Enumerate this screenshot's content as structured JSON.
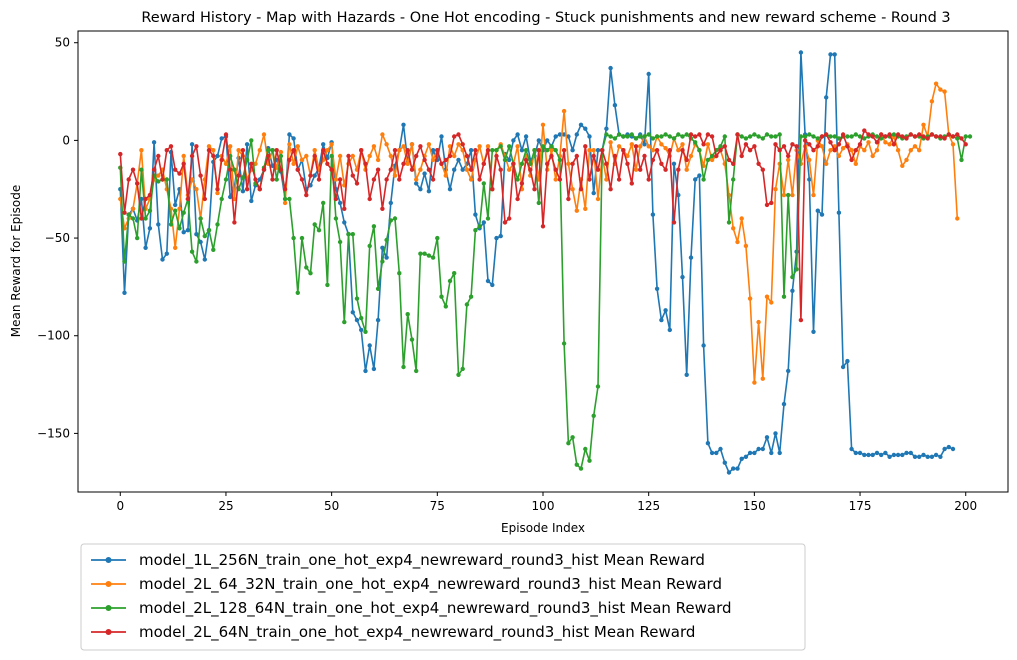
{
  "chart_data": {
    "type": "line",
    "title": "Reward History - Map with Hazards - One Hot encoding - Stuck punishments and new reward scheme - Round 3",
    "xlabel": "Episode Index",
    "ylabel": "Mean Reward for Episode",
    "xlim": [
      -10,
      210
    ],
    "ylim": [
      -180,
      56
    ],
    "x_ticks": [
      0,
      25,
      50,
      75,
      100,
      125,
      150,
      175,
      200
    ],
    "x_tick_labels": [
      "0",
      "25",
      "50",
      "75",
      "100",
      "125",
      "150",
      "175",
      "200"
    ],
    "y_ticks": [
      50,
      0,
      -50,
      -100,
      -150
    ],
    "y_tick_labels": [
      "50",
      "0",
      "−50",
      "−100",
      "−150"
    ],
    "grid": false,
    "legend_position": "below the chart, left",
    "x": "episodes 0..199",
    "series": [
      {
        "name": "model_1L_256N_train_one_hot_exp4_newreward_round3_hist Mean Reward",
        "color": "#1f77b4",
        "values": [
          -25,
          -78,
          -38,
          -35,
          -41,
          -30,
          -55,
          -45,
          -1,
          -43,
          -61,
          -58,
          -6,
          -33,
          -25,
          -47,
          -46,
          -2,
          -48,
          -52,
          -61,
          -46,
          -11,
          -8,
          1,
          2,
          -29,
          -24,
          -9,
          -26,
          -2,
          -31,
          -23,
          -20,
          -15,
          -4,
          -13,
          -10,
          -16,
          -30,
          3,
          1,
          -15,
          -10,
          -25,
          -23,
          -18,
          -14,
          -2,
          -9,
          -1,
          -25,
          -32,
          -42,
          -48,
          -88,
          -92,
          -97,
          -118,
          -105,
          -117,
          -92,
          -55,
          -60,
          -32,
          -13,
          -5,
          8,
          -11,
          -2,
          -22,
          -25,
          -17,
          -26,
          -5,
          -10,
          2,
          -15,
          -25,
          -15,
          -10,
          -15,
          -12,
          -5,
          -38,
          -45,
          -42,
          -72,
          -74,
          -50,
          -49,
          -7,
          -10,
          0,
          3,
          -5,
          2,
          -10,
          -8,
          0,
          -5,
          0,
          -3,
          2,
          3,
          3,
          2,
          -5,
          3,
          8,
          6,
          2,
          -27,
          -5,
          -5,
          6,
          37,
          18,
          3,
          2,
          3,
          2,
          1,
          3,
          -2,
          34,
          -38,
          -76,
          -92,
          -87,
          -97,
          -12,
          -28,
          -70,
          -120,
          -60,
          -20,
          -18,
          -105,
          -155,
          -160,
          -160,
          -158,
          -165,
          -170,
          -168,
          -168,
          -163,
          -162,
          -160,
          -160,
          -158,
          -158,
          -152,
          -160,
          -150,
          -160,
          -135,
          -118,
          -77,
          -57,
          45,
          3,
          -20,
          -98,
          -36,
          -38,
          22,
          44,
          44,
          -37,
          -116,
          -113,
          -158,
          -160,
          -160,
          -161,
          -161,
          -161,
          -160,
          -161,
          -160,
          -162,
          -161,
          -161,
          -161,
          -160,
          -160,
          -162,
          -162,
          -161,
          -162,
          -162,
          -161,
          -162,
          -158,
          -157,
          -158
        ]
      },
      {
        "name": "model_2L_64_32N_train_one_hot_exp4_newreward_round3_hist Mean Reward",
        "color": "#ff7f0e",
        "values": [
          -30,
          -45,
          -40,
          -35,
          -22,
          -5,
          -35,
          -30,
          -20,
          -18,
          -15,
          -25,
          -35,
          -55,
          -35,
          -8,
          -28,
          -20,
          -25,
          -40,
          -20,
          -3,
          -5,
          -27,
          -8,
          -12,
          -3,
          -30,
          -5,
          -8,
          -20,
          -15,
          -12,
          -5,
          3,
          -12,
          -5,
          -14,
          -6,
          -32,
          -2,
          -12,
          -3,
          -10,
          -8,
          -18,
          -5,
          -15,
          -10,
          -5,
          -2,
          -20,
          -8,
          -23,
          -12,
          -8,
          -15,
          -5,
          -15,
          -8,
          -3,
          -10,
          3,
          -2,
          -8,
          -18,
          -5,
          -3,
          -12,
          -2,
          -20,
          -15,
          -8,
          -2,
          -10,
          -5,
          -12,
          -18,
          -3,
          -8,
          -2,
          -5,
          -15,
          -20,
          -10,
          -3,
          -12,
          -3,
          -25,
          -5,
          -2,
          -8,
          -15,
          -12,
          -3,
          -25,
          -8,
          -18,
          -5,
          -20,
          8,
          -15,
          -5,
          -20,
          -8,
          15,
          -12,
          -25,
          -36,
          -20,
          -35,
          -5,
          -5,
          -30,
          -8,
          -20,
          -1,
          -12,
          -3,
          -5,
          -8,
          -2,
          -15,
          -3,
          2,
          -3,
          -5,
          2,
          -2,
          -4,
          -8,
          1,
          -5,
          -2,
          -15,
          -8,
          -2,
          -5,
          -13,
          -2,
          -10,
          -8,
          -5,
          -12,
          -28,
          -45,
          -52,
          -40,
          -54,
          -81,
          -124,
          -93,
          -122,
          -80,
          -83,
          -25,
          -12,
          -28,
          -10,
          -28,
          -5,
          -12,
          -3,
          -10,
          -28,
          0,
          -3,
          -12,
          -5,
          -3,
          -8,
          -4,
          -2,
          -5,
          -12,
          -3,
          -5,
          -1,
          -8,
          -5,
          3,
          -1,
          -2,
          2,
          -5,
          -13,
          -10,
          -5,
          -3,
          -5,
          8,
          2,
          20,
          29,
          26,
          25,
          3,
          -2,
          -40
        ]
      },
      {
        "name": "model_2L_128_64N_train_one_hot_exp4_newreward_round3_hist Mean Reward",
        "color": "#2ca02c",
        "values": [
          -14,
          -62,
          -38,
          -40,
          -50,
          -15,
          -40,
          -36,
          -18,
          -21,
          -20,
          -20,
          -43,
          -36,
          -45,
          -37,
          -30,
          -57,
          -62,
          -40,
          -49,
          -46,
          -56,
          -43,
          -30,
          -20,
          -8,
          -15,
          -25,
          -19,
          -10,
          0,
          -22,
          -25,
          -14,
          -5,
          -5,
          -20,
          -8,
          -30,
          -30,
          -50,
          -78,
          -50,
          -65,
          -68,
          -43,
          -46,
          -32,
          -74,
          -8,
          -40,
          -52,
          -93,
          -48,
          -48,
          -81,
          -91,
          -98,
          -54,
          -44,
          -76,
          -62,
          -51,
          -41,
          -40,
          -68,
          -116,
          -89,
          -102,
          -118,
          -58,
          -58,
          -59,
          -60,
          -50,
          -80,
          -85,
          -72,
          -68,
          -120,
          -117,
          -84,
          -80,
          -46,
          -44,
          -22,
          -40,
          -5,
          -5,
          -3,
          -10,
          -3,
          -12,
          -20,
          -12,
          -5,
          -12,
          -5,
          -32,
          -3,
          -5,
          -3,
          -5,
          -10,
          -104,
          -155,
          -152,
          -166,
          -168,
          -158,
          -164,
          -141,
          -126,
          -5,
          3,
          2,
          1,
          3,
          2,
          2,
          3,
          1,
          2,
          2,
          3,
          1,
          2,
          2,
          3,
          2,
          1,
          3,
          2,
          3,
          1,
          -1,
          -5,
          -20,
          -10,
          -8,
          -5,
          -3,
          2,
          -42,
          -20,
          3,
          2,
          1,
          2,
          3,
          2,
          1,
          3,
          2,
          2,
          3,
          -80,
          -28,
          -70,
          -66,
          2,
          2,
          3,
          2,
          1,
          2,
          3,
          2,
          2,
          1,
          2,
          2,
          2,
          3,
          2,
          1,
          2,
          3,
          2,
          1,
          2,
          2,
          3,
          2,
          1,
          2,
          3,
          2,
          2,
          1,
          2,
          3,
          2,
          1,
          2,
          3,
          2,
          1,
          -10,
          2,
          2
        ]
      },
      {
        "name": "model_2L_64N_train_one_hot_exp4_newreward_round3_hist Mean Reward",
        "color": "#d62728",
        "values": [
          -7,
          -37,
          -20,
          -15,
          -22,
          -40,
          -30,
          -28,
          -15,
          -8,
          -20,
          -5,
          -3,
          -15,
          -17,
          -12,
          -30,
          -8,
          -3,
          -18,
          -30,
          -5,
          -8,
          -25,
          -10,
          3,
          -15,
          -42,
          -18,
          -5,
          -25,
          -12,
          -20,
          -25,
          -15,
          -8,
          -20,
          -5,
          -15,
          -25,
          -10,
          -5,
          -15,
          -20,
          -28,
          -18,
          -8,
          -20,
          -5,
          -12,
          -15,
          -30,
          -20,
          -35,
          -8,
          -18,
          -22,
          -5,
          -12,
          -30,
          -20,
          -15,
          -35,
          -20,
          -15,
          -5,
          -20,
          -12,
          -5,
          -15,
          -8,
          -3,
          -10,
          -15,
          -20,
          -5,
          -12,
          -10,
          -8,
          2,
          3,
          -2,
          -8,
          -15,
          -5,
          -20,
          -12,
          -5,
          -25,
          -8,
          -15,
          -42,
          -40,
          -12,
          -30,
          -22,
          -10,
          -15,
          -25,
          -5,
          -44,
          -12,
          -8,
          -15,
          -20,
          -5,
          -30,
          -12,
          -8,
          -25,
          -3,
          -20,
          -8,
          -15,
          -5,
          -12,
          -25,
          -8,
          -20,
          -5,
          -12,
          -22,
          -3,
          -15,
          -8,
          -20,
          -10,
          -5,
          -12,
          -15,
          -5,
          -42,
          -15,
          -5,
          -10,
          3,
          2,
          3,
          -2,
          3,
          2,
          -8,
          -5,
          -3,
          -10,
          -12,
          3,
          -8,
          -2,
          -5,
          -3,
          -12,
          -15,
          -33,
          -32,
          -2,
          -5,
          -3,
          -8,
          -2,
          -3,
          -92,
          0,
          -2,
          -5,
          -3,
          2,
          3,
          -1,
          -5,
          -2,
          3,
          -3,
          -10,
          -5,
          -2,
          5,
          3,
          2,
          -1,
          3,
          2,
          3,
          -2,
          3,
          2,
          1,
          3,
          2,
          3,
          2,
          1,
          3,
          2,
          2,
          1,
          3,
          2,
          3,
          1,
          -2
        ]
      }
    ]
  }
}
